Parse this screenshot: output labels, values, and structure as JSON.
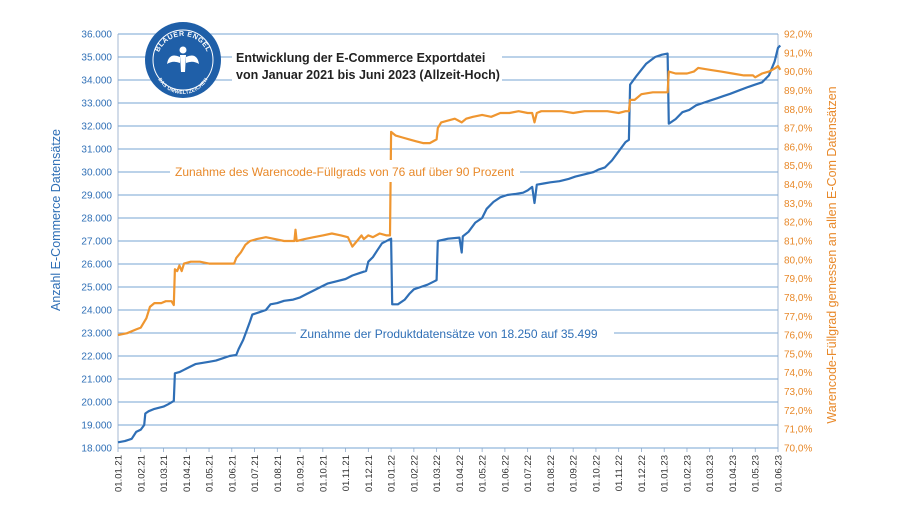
{
  "chart_data": {
    "type": "line",
    "title": [
      "Entwicklung der E-Commerce Exportdatei",
      "von Januar 2021 bis Juni 2023 (Allzeit-Hoch)"
    ],
    "ylabel_left": "Anzahl E-Commerce Datensätze",
    "ylabel_right": "Warencode-Füllgrad gemessen an allen E-Com Datensätzen",
    "ylim_left": [
      18000,
      36000
    ],
    "ylim_right": [
      70.0,
      92.0
    ],
    "yticks_left": [
      "18.000",
      "19.000",
      "20.000",
      "21.000",
      "22.000",
      "23.000",
      "24.000",
      "25.000",
      "26.000",
      "27.000",
      "28.000",
      "29.000",
      "30.000",
      "31.000",
      "32.000",
      "33.000",
      "34.000",
      "35.000",
      "36.000"
    ],
    "yticks_right": [
      "70,0%",
      "71,0%",
      "72,0%",
      "73,0%",
      "74,0%",
      "75,0%",
      "76,0%",
      "77,0%",
      "78,0%",
      "79,0%",
      "80,0%",
      "81,0%",
      "82,0%",
      "83,0%",
      "84,0%",
      "85,0%",
      "86,0%",
      "87,0%",
      "88,0%",
      "89,0%",
      "90,0%",
      "91,0%",
      "92,0%"
    ],
    "x_ticks": [
      "01.01.21",
      "01.02.21",
      "01.03.21",
      "01.04.21",
      "01.05.21",
      "01.06.21",
      "01.07.21",
      "01.08.21",
      "01.09.21",
      "01.10.21",
      "01.11.21",
      "01.12.21",
      "01.01.22",
      "01.02.22",
      "01.03.22",
      "01.04.22",
      "01.05.22",
      "01.06.22",
      "01.07.22",
      "01.08.22",
      "01.09.22",
      "01.10.22",
      "01.11.22",
      "01.12.22",
      "01.01.23",
      "01.02.23",
      "01.03.23",
      "01.04.23",
      "01.05.23",
      "01.06.23"
    ],
    "grid": true,
    "legend": "none",
    "annotations": [
      "Zunahme des Warencode-Füllgrads von 76 auf über 90 Prozent",
      "Zunahme der Produktdatensätze von 18.250 auf 35.499"
    ],
    "series": [
      {
        "axis": "left",
        "color": "#2f6fb6",
        "points": [
          [
            0.0,
            18250
          ],
          [
            0.3,
            18300
          ],
          [
            0.6,
            18400
          ],
          [
            0.8,
            18700
          ],
          [
            1.0,
            18800
          ],
          [
            1.15,
            19000
          ],
          [
            1.2,
            19500
          ],
          [
            1.35,
            19600
          ],
          [
            1.6,
            19700
          ],
          [
            2.0,
            19800
          ],
          [
            2.2,
            19900
          ],
          [
            2.45,
            20050
          ],
          [
            2.5,
            21250
          ],
          [
            2.7,
            21300
          ],
          [
            2.9,
            21400
          ],
          [
            3.0,
            21450
          ],
          [
            3.2,
            21550
          ],
          [
            3.4,
            21650
          ],
          [
            3.7,
            21700
          ],
          [
            4.0,
            21750
          ],
          [
            4.3,
            21800
          ],
          [
            4.6,
            21900
          ],
          [
            4.9,
            22000
          ],
          [
            5.2,
            22050
          ],
          [
            5.3,
            22300
          ],
          [
            5.5,
            22700
          ],
          [
            5.65,
            23100
          ],
          [
            5.8,
            23500
          ],
          [
            5.9,
            23800
          ],
          [
            6.2,
            23900
          ],
          [
            6.5,
            24000
          ],
          [
            6.7,
            24250
          ],
          [
            7.0,
            24300
          ],
          [
            7.3,
            24400
          ],
          [
            7.7,
            24450
          ],
          [
            8.0,
            24550
          ],
          [
            8.3,
            24700
          ],
          [
            8.6,
            24850
          ],
          [
            8.9,
            25000
          ],
          [
            9.2,
            25150
          ],
          [
            9.6,
            25250
          ],
          [
            10.0,
            25350
          ],
          [
            10.3,
            25500
          ],
          [
            10.6,
            25600
          ],
          [
            10.9,
            25700
          ],
          [
            11.0,
            26100
          ],
          [
            11.2,
            26300
          ],
          [
            11.4,
            26600
          ],
          [
            11.6,
            26900
          ],
          [
            11.9,
            27050
          ],
          [
            12.0,
            27100
          ],
          [
            12.05,
            24250
          ],
          [
            12.3,
            24250
          ],
          [
            12.6,
            24450
          ],
          [
            12.8,
            24700
          ],
          [
            13.0,
            24900
          ],
          [
            13.3,
            25000
          ],
          [
            13.6,
            25100
          ],
          [
            13.9,
            25250
          ],
          [
            14.0,
            25300
          ],
          [
            14.05,
            27000
          ],
          [
            14.5,
            27100
          ],
          [
            15.0,
            27150
          ],
          [
            15.1,
            26500
          ],
          [
            15.15,
            27200
          ],
          [
            15.4,
            27400
          ],
          [
            15.7,
            27800
          ],
          [
            16.0,
            28000
          ],
          [
            16.2,
            28400
          ],
          [
            16.5,
            28700
          ],
          [
            16.8,
            28900
          ],
          [
            17.1,
            29000
          ],
          [
            17.5,
            29050
          ],
          [
            17.8,
            29100
          ],
          [
            18.0,
            29200
          ],
          [
            18.2,
            29350
          ],
          [
            18.3,
            28650
          ],
          [
            18.4,
            29450
          ],
          [
            18.7,
            29500
          ],
          [
            19.0,
            29550
          ],
          [
            19.4,
            29600
          ],
          [
            19.8,
            29700
          ],
          [
            20.1,
            29800
          ],
          [
            20.5,
            29900
          ],
          [
            20.9,
            30000
          ],
          [
            21.1,
            30100
          ],
          [
            21.4,
            30200
          ],
          [
            21.7,
            30500
          ],
          [
            22.0,
            30900
          ],
          [
            22.3,
            31300
          ],
          [
            22.45,
            31400
          ],
          [
            22.5,
            33800
          ],
          [
            22.8,
            34200
          ],
          [
            23.2,
            34700
          ],
          [
            23.6,
            35000
          ],
          [
            23.9,
            35100
          ],
          [
            24.15,
            35150
          ],
          [
            24.2,
            32100
          ],
          [
            24.5,
            32300
          ],
          [
            24.8,
            32600
          ],
          [
            25.1,
            32700
          ],
          [
            25.4,
            32900
          ],
          [
            25.7,
            33000
          ],
          [
            26.0,
            33100
          ],
          [
            26.3,
            33200
          ],
          [
            26.6,
            33300
          ],
          [
            26.9,
            33400
          ],
          [
            27.3,
            33550
          ],
          [
            27.7,
            33700
          ],
          [
            28.0,
            33800
          ],
          [
            28.3,
            33900
          ],
          [
            28.6,
            34200
          ],
          [
            28.85,
            34800
          ],
          [
            29.0,
            35400
          ],
          [
            29.1,
            35499
          ]
        ]
      },
      {
        "axis": "right",
        "color": "#ef9630",
        "points": [
          [
            0.0,
            76.0
          ],
          [
            0.4,
            76.1
          ],
          [
            0.8,
            76.3
          ],
          [
            1.0,
            76.4
          ],
          [
            1.25,
            76.9
          ],
          [
            1.4,
            77.5
          ],
          [
            1.6,
            77.7
          ],
          [
            1.9,
            77.7
          ],
          [
            2.1,
            77.8
          ],
          [
            2.35,
            77.8
          ],
          [
            2.45,
            77.6
          ],
          [
            2.5,
            79.5
          ],
          [
            2.6,
            79.4
          ],
          [
            2.7,
            79.7
          ],
          [
            2.8,
            79.4
          ],
          [
            2.9,
            79.8
          ],
          [
            3.2,
            79.9
          ],
          [
            3.6,
            79.9
          ],
          [
            4.0,
            79.8
          ],
          [
            4.4,
            79.8
          ],
          [
            4.8,
            79.8
          ],
          [
            5.1,
            79.8
          ],
          [
            5.2,
            80.1
          ],
          [
            5.4,
            80.4
          ],
          [
            5.6,
            80.8
          ],
          [
            5.8,
            81.0
          ],
          [
            6.1,
            81.1
          ],
          [
            6.5,
            81.2
          ],
          [
            6.9,
            81.1
          ],
          [
            7.3,
            81.0
          ],
          [
            7.75,
            81.0
          ],
          [
            7.8,
            81.6
          ],
          [
            7.85,
            81.0
          ],
          [
            8.2,
            81.1
          ],
          [
            8.6,
            81.2
          ],
          [
            9.0,
            81.3
          ],
          [
            9.4,
            81.4
          ],
          [
            9.8,
            81.3
          ],
          [
            10.1,
            81.2
          ],
          [
            10.3,
            80.7
          ],
          [
            10.5,
            81.0
          ],
          [
            10.7,
            81.3
          ],
          [
            10.8,
            81.1
          ],
          [
            11.0,
            81.3
          ],
          [
            11.2,
            81.2
          ],
          [
            11.5,
            81.4
          ],
          [
            11.8,
            81.3
          ],
          [
            11.95,
            81.3
          ],
          [
            12.0,
            86.8
          ],
          [
            12.2,
            86.6
          ],
          [
            12.5,
            86.5
          ],
          [
            12.8,
            86.4
          ],
          [
            13.1,
            86.3
          ],
          [
            13.4,
            86.2
          ],
          [
            13.7,
            86.2
          ],
          [
            14.0,
            86.4
          ],
          [
            14.05,
            87.0
          ],
          [
            14.2,
            87.3
          ],
          [
            14.5,
            87.4
          ],
          [
            14.8,
            87.5
          ],
          [
            15.1,
            87.3
          ],
          [
            15.3,
            87.5
          ],
          [
            15.6,
            87.6
          ],
          [
            16.0,
            87.7
          ],
          [
            16.4,
            87.6
          ],
          [
            16.8,
            87.8
          ],
          [
            17.2,
            87.8
          ],
          [
            17.6,
            87.9
          ],
          [
            18.0,
            87.8
          ],
          [
            18.2,
            87.8
          ],
          [
            18.3,
            87.3
          ],
          [
            18.4,
            87.8
          ],
          [
            18.6,
            87.9
          ],
          [
            19.0,
            87.9
          ],
          [
            19.5,
            87.9
          ],
          [
            20.0,
            87.8
          ],
          [
            20.5,
            87.9
          ],
          [
            21.0,
            87.9
          ],
          [
            21.5,
            87.9
          ],
          [
            22.0,
            87.8
          ],
          [
            22.3,
            87.9
          ],
          [
            22.45,
            87.9
          ],
          [
            22.5,
            88.5
          ],
          [
            22.7,
            88.5
          ],
          [
            23.0,
            88.8
          ],
          [
            23.5,
            88.9
          ],
          [
            24.0,
            88.9
          ],
          [
            24.15,
            88.9
          ],
          [
            24.2,
            90.0
          ],
          [
            24.5,
            89.9
          ],
          [
            25.0,
            89.9
          ],
          [
            25.3,
            90.0
          ],
          [
            25.5,
            90.2
          ],
          [
            26.0,
            90.1
          ],
          [
            26.5,
            90.0
          ],
          [
            27.0,
            89.9
          ],
          [
            27.5,
            89.8
          ],
          [
            27.9,
            89.8
          ],
          [
            28.0,
            89.7
          ],
          [
            28.3,
            89.9
          ],
          [
            28.6,
            90.0
          ],
          [
            28.9,
            90.2
          ],
          [
            29.0,
            90.3
          ],
          [
            29.1,
            90.1
          ]
        ]
      }
    ]
  }
}
